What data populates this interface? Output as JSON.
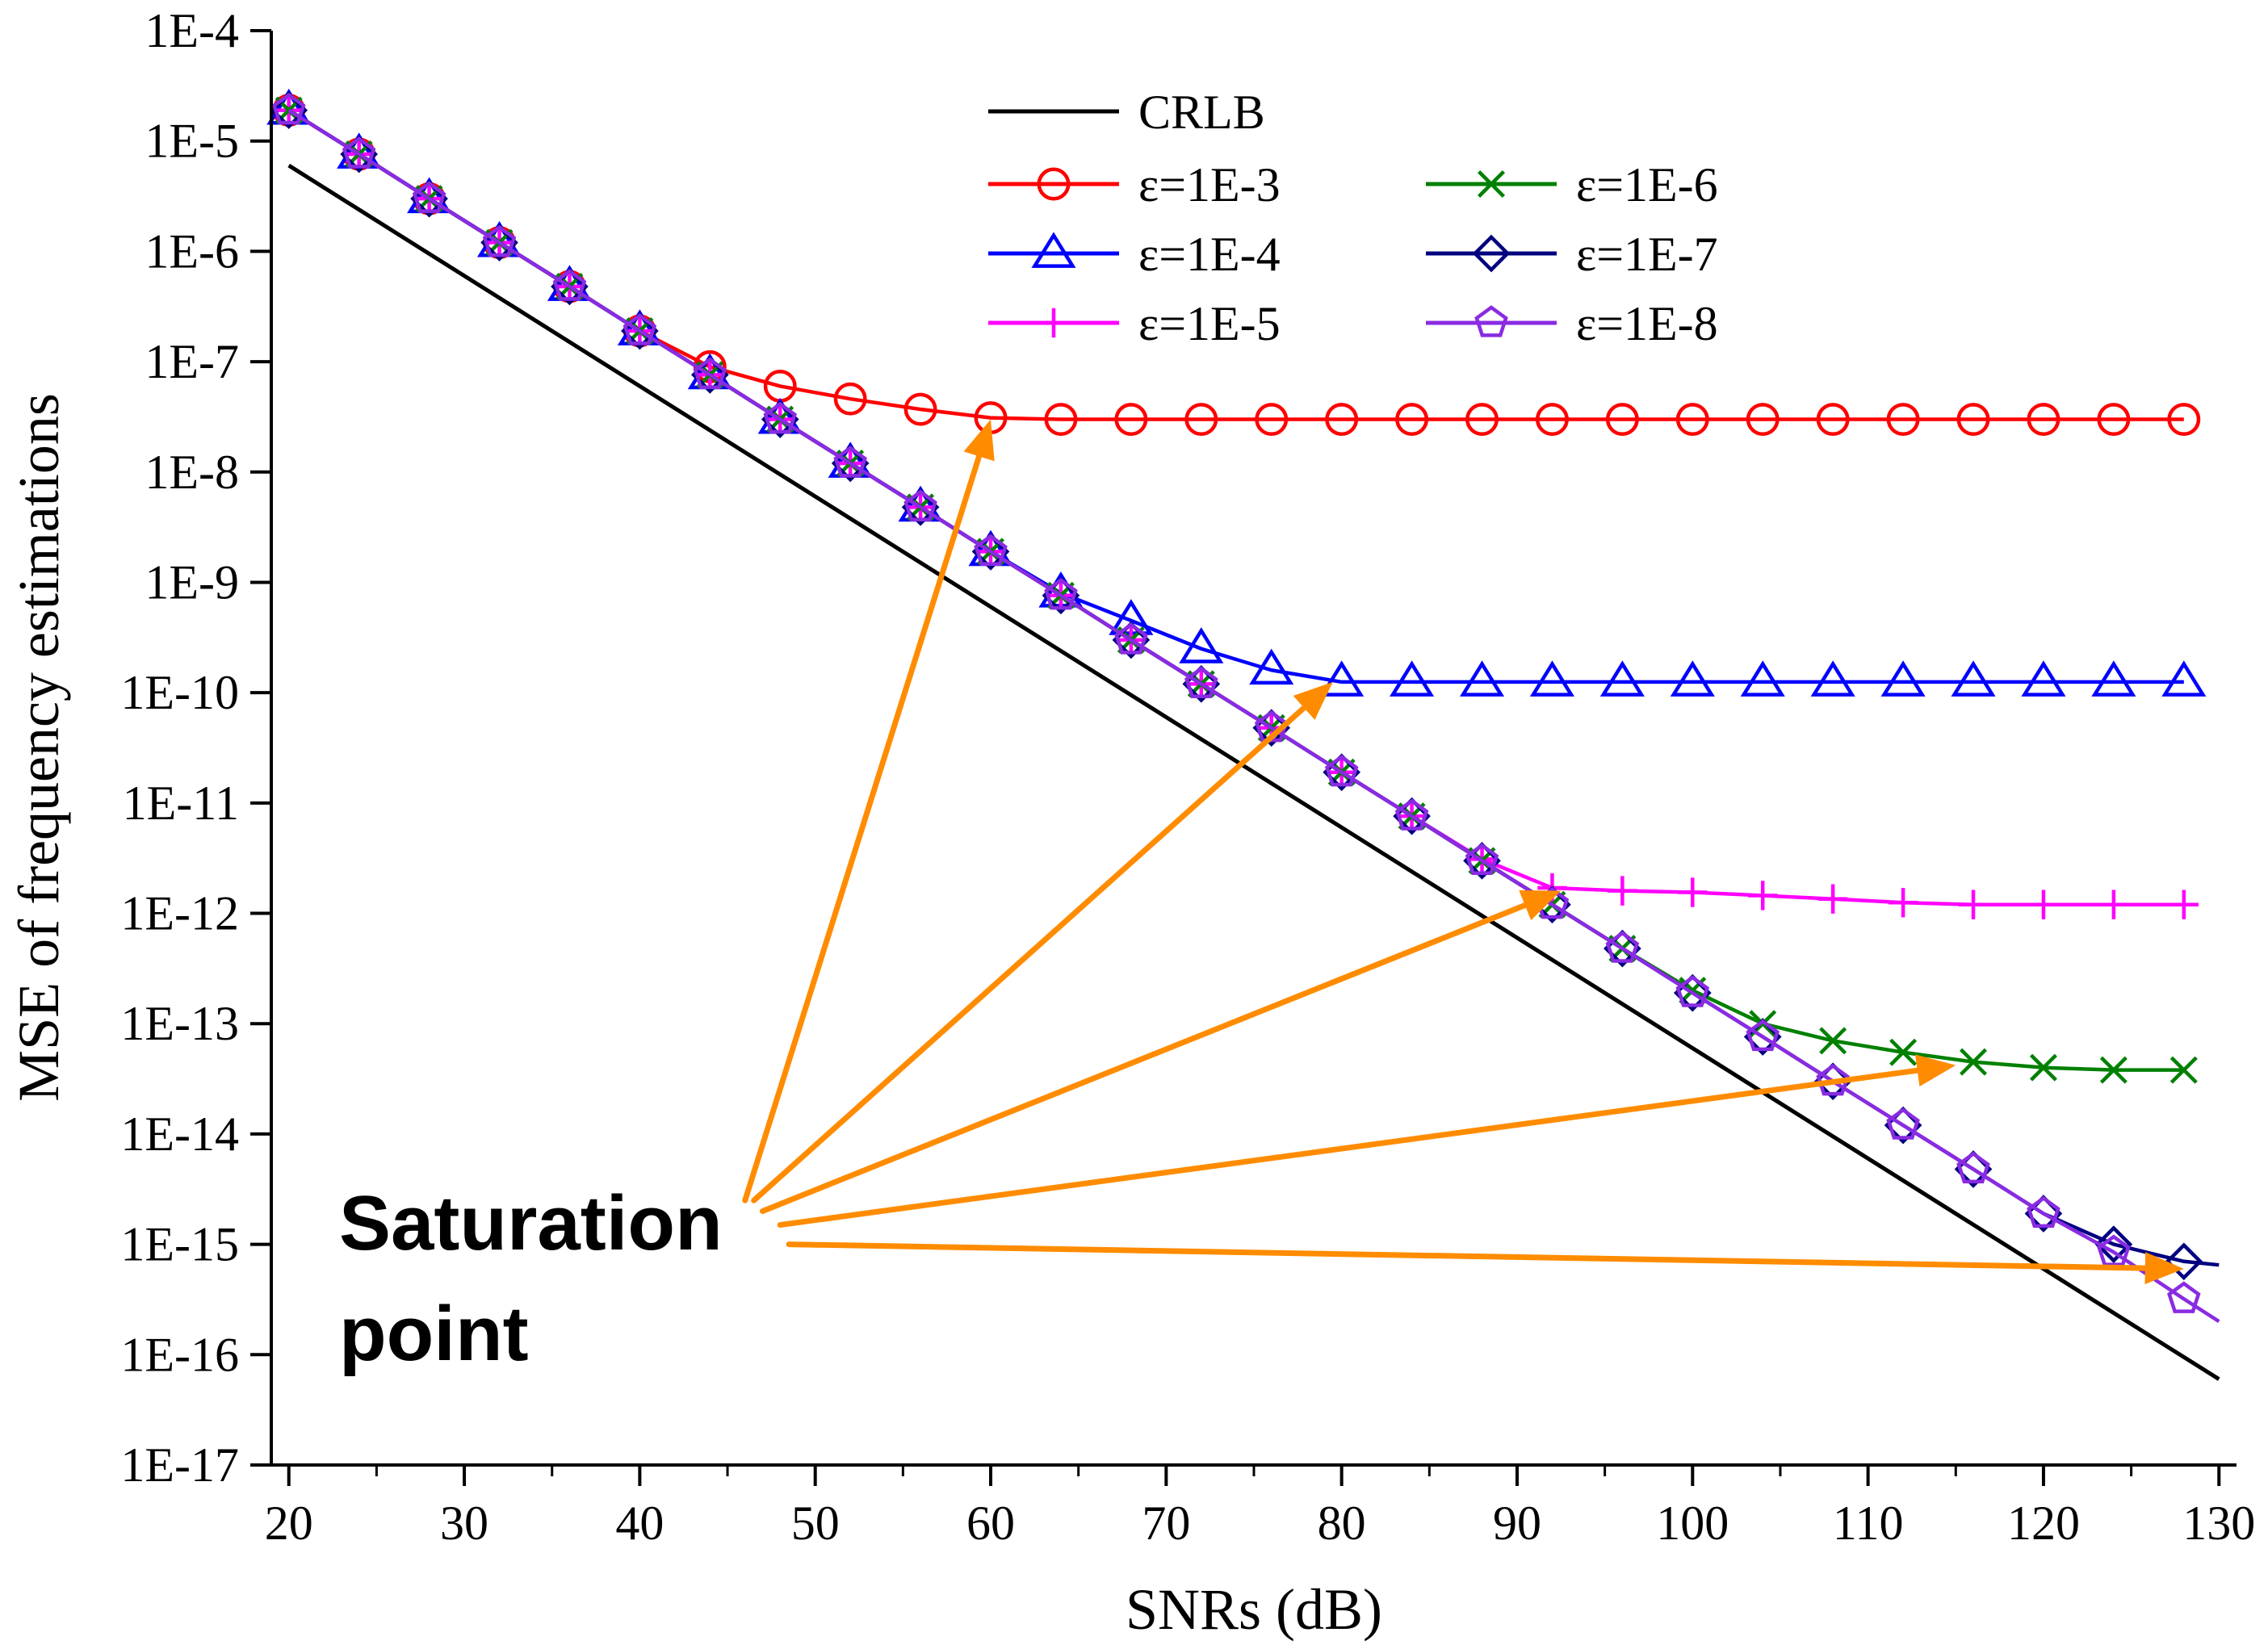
{
  "chart_data": {
    "type": "line",
    "xlabel": "SNRs (dB)",
    "ylabel": "MSE of frequency estimations",
    "xlim": [
      19,
      131
    ],
    "ylim_log10": [
      -17,
      -4
    ],
    "yscale": "log",
    "x_ticks": [
      20,
      30,
      40,
      50,
      60,
      70,
      80,
      90,
      100,
      110,
      120,
      130
    ],
    "x_tick_labels": [
      "20",
      "30",
      "40",
      "50",
      "60",
      "70",
      "80",
      "90",
      "100",
      "110",
      "120",
      "130"
    ],
    "y_ticks_log10": [
      -17,
      -16,
      -15,
      -14,
      -13,
      -12,
      -11,
      -10,
      -9,
      -8,
      -7,
      -6,
      -5,
      -4
    ],
    "y_tick_labels": [
      "1E-17",
      "1E-16",
      "1E-15",
      "1E-14",
      "1E-13",
      "1E-12",
      "1E-11",
      "1E-10",
      "1E-9",
      "1E-8",
      "1E-7",
      "1E-6",
      "1E-5",
      "1E-4"
    ],
    "grid": false,
    "legend_position": "top-center",
    "x": [
      20,
      24,
      28,
      32,
      36,
      40,
      44,
      48,
      52,
      56,
      60,
      64,
      68,
      72,
      76,
      80,
      84,
      88,
      92,
      96,
      100,
      104,
      108,
      112,
      116,
      120,
      124,
      128
    ],
    "series": [
      {
        "name": "CRLB",
        "color": "#000000",
        "marker": "none",
        "x": [
          20,
          130
        ],
        "values": [
          6e-06,
          6e-17
        ]
      },
      {
        "name": "ε=1E-3",
        "color": "#ff0000",
        "marker": "circle",
        "values": [
          1.9e-05,
          7.6e-06,
          3e-06,
          1.2e-06,
          4.8e-07,
          1.9e-07,
          9e-08,
          6e-08,
          4.6e-08,
          3.7e-08,
          3.1e-08,
          3e-08,
          3e-08,
          3e-08,
          3e-08,
          3e-08,
          3e-08,
          3e-08,
          3e-08,
          3e-08,
          3e-08,
          3e-08,
          3e-08,
          3e-08,
          3e-08,
          3e-08,
          3e-08,
          3e-08
        ]
      },
      {
        "name": "ε=1E-4",
        "color": "#0000ff",
        "marker": "triangle",
        "values": [
          1.9e-05,
          7.6e-06,
          3e-06,
          1.2e-06,
          4.8e-07,
          1.9e-07,
          7.6e-08,
          3e-08,
          1.2e-08,
          4.8e-09,
          1.9e-09,
          8e-10,
          4.5e-10,
          2.5e-10,
          1.6e-10,
          1.25e-10,
          1.25e-10,
          1.25e-10,
          1.25e-10,
          1.25e-10,
          1.25e-10,
          1.25e-10,
          1.25e-10,
          1.25e-10,
          1.25e-10,
          1.25e-10,
          1.25e-10,
          1.25e-10
        ]
      },
      {
        "name": "ε=1E-5",
        "color": "#ff00ff",
        "marker": "plus",
        "values": [
          1.9e-05,
          7.6e-06,
          3e-06,
          1.2e-06,
          4.8e-07,
          1.9e-07,
          7.6e-08,
          3e-08,
          1.2e-08,
          4.8e-09,
          1.9e-09,
          7.6e-10,
          3e-10,
          1.2e-10,
          4.8e-11,
          1.9e-11,
          7.6e-12,
          3.1e-12,
          1.7e-12,
          1.6e-12,
          1.55e-12,
          1.45e-12,
          1.35e-12,
          1.25e-12,
          1.2e-12,
          1.2e-12,
          1.2e-12,
          1.2e-12
        ]
      },
      {
        "name": "ε=1E-6",
        "color": "#008000",
        "marker": "x",
        "values": [
          1.9e-05,
          7.6e-06,
          3e-06,
          1.2e-06,
          4.8e-07,
          1.9e-07,
          7.6e-08,
          3e-08,
          1.2e-08,
          4.8e-09,
          1.9e-09,
          7.6e-10,
          3e-10,
          1.2e-10,
          4.8e-11,
          1.9e-11,
          7.6e-12,
          3e-12,
          1.2e-12,
          4.8e-13,
          2e-13,
          1e-13,
          7e-14,
          5.5e-14,
          4.5e-14,
          4e-14,
          3.8e-14,
          3.8e-14
        ]
      },
      {
        "name": "ε=1E-7",
        "color": "#00007f",
        "marker": "diamond",
        "values": [
          1.9e-05,
          7.6e-06,
          3e-06,
          1.2e-06,
          4.8e-07,
          1.9e-07,
          7.6e-08,
          3e-08,
          1.2e-08,
          4.8e-09,
          1.9e-09,
          7.6e-10,
          3e-10,
          1.2e-10,
          4.8e-11,
          1.9e-11,
          7.6e-12,
          3e-12,
          1.2e-12,
          4.8e-13,
          1.9e-13,
          7.6e-14,
          3e-14,
          1.2e-14,
          4.8e-15,
          1.9e-15,
          1e-15,
          7e-16
        ]
      },
      {
        "name": "ε=1E-8",
        "color": "#8a2be2",
        "marker": "pentagon",
        "values": [
          1.9e-05,
          7.6e-06,
          3e-06,
          1.2e-06,
          4.8e-07,
          1.9e-07,
          7.6e-08,
          3e-08,
          1.2e-08,
          4.8e-09,
          1.9e-09,
          7.6e-10,
          3e-10,
          1.2e-10,
          4.8e-11,
          1.9e-11,
          7.6e-12,
          3e-12,
          1.2e-12,
          4.8e-13,
          1.9e-13,
          7.6e-14,
          3e-14,
          1.2e-14,
          4.8e-15,
          1.9e-15,
          8.5e-16,
          3.2e-16
        ]
      }
    ],
    "series_tail": {
      "ε=1E-7": {
        "x": 130,
        "value": 6.5e-16
      },
      "ε=1E-8": {
        "x": 130,
        "value": 2e-16
      }
    },
    "annotation": {
      "lines": [
        "Saturation",
        "point"
      ],
      "color": "#ff8c00",
      "arrows": [
        {
          "from_x": 46.0,
          "from_y": 2.5e-15,
          "to_x": 60.0,
          "to_y": 3e-08
        },
        {
          "from_x": 46.5,
          "from_y": 2.5e-15,
          "to_x": 79.5,
          "to_y": 1.25e-10
        },
        {
          "from_x": 47.0,
          "from_y": 2e-15,
          "to_x": 92.5,
          "to_y": 1.6e-12
        },
        {
          "from_x": 48.0,
          "from_y": 1.5e-15,
          "to_x": 115.0,
          "to_y": 4.2e-14
        },
        {
          "from_x": 48.5,
          "from_y": 1e-15,
          "to_x": 128.0,
          "to_y": 6e-16
        }
      ]
    }
  }
}
